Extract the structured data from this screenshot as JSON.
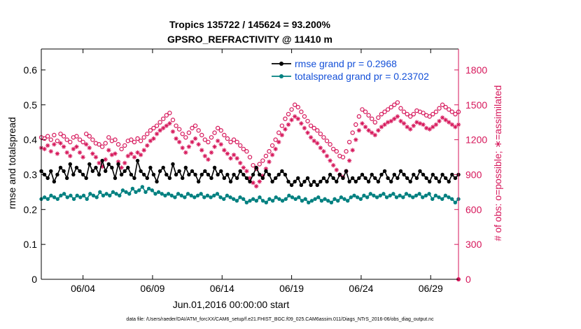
{
  "chart_data": {
    "type": "line",
    "title_line1": "Tropics 135722 / 145624 = 93.200%",
    "title_line2": "GPSRO_REFRACTIVITY @ 11410 m",
    "xlabel": "Jun.01,2016 00:00:00 start",
    "ylabel_left": "rmse and totalspread",
    "ylabel_right": "# of obs: o=possible; ∗=assimilated",
    "footer": "data file: /Users/raeder/DAI/ATM_forcXX/CAM6_setup/f.e21.FHIST_BGC.f09_025.CAM6assim.011/Diags_NTrS_2016-06/obs_diag_output.nc",
    "x_range_days": [
      0,
      30
    ],
    "x_ticks": [
      {
        "day": 3,
        "label": "06/04"
      },
      {
        "day": 8,
        "label": "06/09"
      },
      {
        "day": 13,
        "label": "06/14"
      },
      {
        "day": 18,
        "label": "06/19"
      },
      {
        "day": 23,
        "label": "06/24"
      },
      {
        "day": 28,
        "label": "06/29"
      }
    ],
    "ylim_left": [
      0,
      0.66
    ],
    "y_ticks_left": [
      "0",
      "0.1",
      "0.2",
      "0.3",
      "0.4",
      "0.5",
      "0.6"
    ],
    "ylim_right": [
      0,
      1980
    ],
    "y_ticks_right": [
      "0",
      "300",
      "600",
      "900",
      "1200",
      "1500",
      "1800"
    ],
    "legend": [
      {
        "label": "rmse grand pr = 0.2968"
      },
      {
        "label": "totalspread grand pr = 0.23702"
      }
    ],
    "colors": {
      "rmse": "#000000",
      "spread": "#008080",
      "obs": "#d6165a",
      "legend_text": "#1450d8"
    },
    "series": [
      {
        "name": "rmse",
        "axis": "left",
        "values": [
          0.31,
          0.3,
          0.29,
          0.31,
          0.28,
          0.3,
          0.32,
          0.31,
          0.29,
          0.33,
          0.3,
          0.32,
          0.31,
          0.3,
          0.29,
          0.33,
          0.31,
          0.32,
          0.3,
          0.34,
          0.31,
          0.33,
          0.32,
          0.29,
          0.33,
          0.3,
          0.31,
          0.32,
          0.3,
          0.29,
          0.34,
          0.31,
          0.3,
          0.29,
          0.32,
          0.3,
          0.28,
          0.31,
          0.32,
          0.3,
          0.29,
          0.33,
          0.3,
          0.31,
          0.29,
          0.32,
          0.3,
          0.31,
          0.3,
          0.28,
          0.3,
          0.31,
          0.3,
          0.29,
          0.32,
          0.3,
          0.31,
          0.29,
          0.3,
          0.28,
          0.3,
          0.29,
          0.31,
          0.3,
          0.29,
          0.28,
          0.3,
          0.32,
          0.3,
          0.29,
          0.31,
          0.3,
          0.28,
          0.29,
          0.3,
          0.31,
          0.3,
          0.28,
          0.27,
          0.28,
          0.29,
          0.27,
          0.28,
          0.29,
          0.27,
          0.28,
          0.27,
          0.28,
          0.29,
          0.28,
          0.3,
          0.29,
          0.28,
          0.3,
          0.29,
          0.31,
          0.28,
          0.29,
          0.28,
          0.29,
          0.3,
          0.29,
          0.28,
          0.3,
          0.29,
          0.28,
          0.3,
          0.31,
          0.29,
          0.28,
          0.3,
          0.29,
          0.31,
          0.3,
          0.29,
          0.28,
          0.3,
          0.29,
          0.31,
          0.3,
          0.29,
          0.28,
          0.3,
          0.29,
          0.28,
          0.3,
          0.29,
          0.28,
          0.3,
          0.29,
          0.3
        ]
      },
      {
        "name": "totalspread",
        "axis": "left",
        "values": [
          0.23,
          0.235,
          0.23,
          0.24,
          0.235,
          0.23,
          0.24,
          0.245,
          0.235,
          0.24,
          0.23,
          0.24,
          0.235,
          0.24,
          0.23,
          0.245,
          0.24,
          0.235,
          0.25,
          0.24,
          0.245,
          0.24,
          0.25,
          0.245,
          0.24,
          0.255,
          0.25,
          0.245,
          0.26,
          0.25,
          0.255,
          0.265,
          0.25,
          0.26,
          0.255,
          0.245,
          0.25,
          0.245,
          0.24,
          0.245,
          0.24,
          0.235,
          0.245,
          0.24,
          0.235,
          0.245,
          0.24,
          0.235,
          0.24,
          0.245,
          0.235,
          0.24,
          0.235,
          0.24,
          0.245,
          0.235,
          0.23,
          0.24,
          0.235,
          0.23,
          0.225,
          0.235,
          0.23,
          0.22,
          0.225,
          0.23,
          0.225,
          0.235,
          0.225,
          0.22,
          0.23,
          0.225,
          0.235,
          0.23,
          0.225,
          0.23,
          0.24,
          0.235,
          0.23,
          0.235,
          0.225,
          0.23,
          0.22,
          0.225,
          0.23,
          0.235,
          0.225,
          0.23,
          0.225,
          0.22,
          0.23,
          0.225,
          0.235,
          0.23,
          0.225,
          0.235,
          0.24,
          0.235,
          0.23,
          0.24,
          0.235,
          0.245,
          0.24,
          0.235,
          0.24,
          0.245,
          0.235,
          0.24,
          0.245,
          0.235,
          0.24,
          0.235,
          0.245,
          0.24,
          0.235,
          0.24,
          0.245,
          0.235,
          0.24,
          0.245,
          0.23,
          0.24,
          0.235,
          0.23,
          0.24,
          0.235,
          0.23,
          0.22,
          0.23
        ]
      },
      {
        "name": "obs possible",
        "axis": "right",
        "values": [
          1220,
          1210,
          1230,
          1200,
          1240,
          1190,
          1250,
          1230,
          1200,
          1180,
          1220,
          1230,
          1200,
          1180,
          1250,
          1230,
          1200,
          1170,
          1160,
          1140,
          1170,
          1220,
          1190,
          1200,
          1160,
          1120,
          1150,
          1190,
          1200,
          1180,
          1210,
          1190,
          1220,
          1250,
          1280,
          1300,
          1320,
          1350,
          1380,
          1410,
          1430,
          1370,
          1320,
          1290,
          1250,
          1220,
          1260,
          1300,
          1320,
          1280,
          1240,
          1200,
          1180,
          1220,
          1260,
          1300,
          1280,
          1240,
          1210,
          1180,
          1200,
          1180,
          1150,
          1120,
          1100,
          1050,
          980,
          950,
          990,
          1020,
          1060,
          1100,
          1150,
          1200,
          1260,
          1320,
          1380,
          1420,
          1460,
          1500,
          1480,
          1440,
          1400,
          1360,
          1320,
          1300,
          1280,
          1250,
          1220,
          1190,
          1160,
          1120,
          1100,
          1060,
          1050,
          1100,
          1180,
          1260,
          1330,
          1400,
          1460,
          1440,
          1410,
          1380,
          1350,
          1390,
          1420,
          1440,
          1460,
          1480,
          1500,
          1520,
          1470,
          1440,
          1420,
          1400,
          1420,
          1450,
          1440,
          1430,
          1410,
          1400,
          1420,
          1440,
          1470,
          1500,
          1480,
          1460,
          1440,
          1420,
          1440
        ]
      },
      {
        "name": "obs assimilated",
        "axis": "right",
        "values": [
          1130,
          1120,
          1150,
          1100,
          1160,
          1080,
          1170,
          1140,
          1090,
          1060,
          1120,
          1140,
          1090,
          1050,
          1160,
          1130,
          1080,
          1050,
          1000,
          970,
          1030,
          1110,
          1070,
          1080,
          1010,
          960,
          1000,
          1060,
          1080,
          1050,
          1090,
          1070,
          1110,
          1150,
          1190,
          1210,
          1250,
          1280,
          1300,
          1320,
          1340,
          1270,
          1210,
          1180,
          1130,
          1090,
          1140,
          1180,
          1210,
          1160,
          1110,
          1060,
          1030,
          1090,
          1140,
          1190,
          1160,
          1110,
          1080,
          1040,
          1070,
          1040,
          1000,
          960,
          930,
          870,
          830,
          800,
          840,
          890,
          950,
          1010,
          1070,
          1120,
          1180,
          1240,
          1290,
          1330,
          1370,
          1400,
          1380,
          1340,
          1300,
          1260,
          1220,
          1190,
          1170,
          1130,
          1100,
          1060,
          1020,
          980,
          940,
          900,
          880,
          930,
          1020,
          1110,
          1200,
          1280,
          1340,
          1310,
          1280,
          1260,
          1240,
          1280,
          1310,
          1330,
          1350,
          1360,
          1380,
          1400,
          1360,
          1340,
          1310,
          1290,
          1320,
          1350,
          1340,
          1330,
          1300,
          1290,
          1310,
          1330,
          1360,
          1390,
          1370,
          1350,
          1330,
          1310,
          1330
        ]
      }
    ]
  }
}
